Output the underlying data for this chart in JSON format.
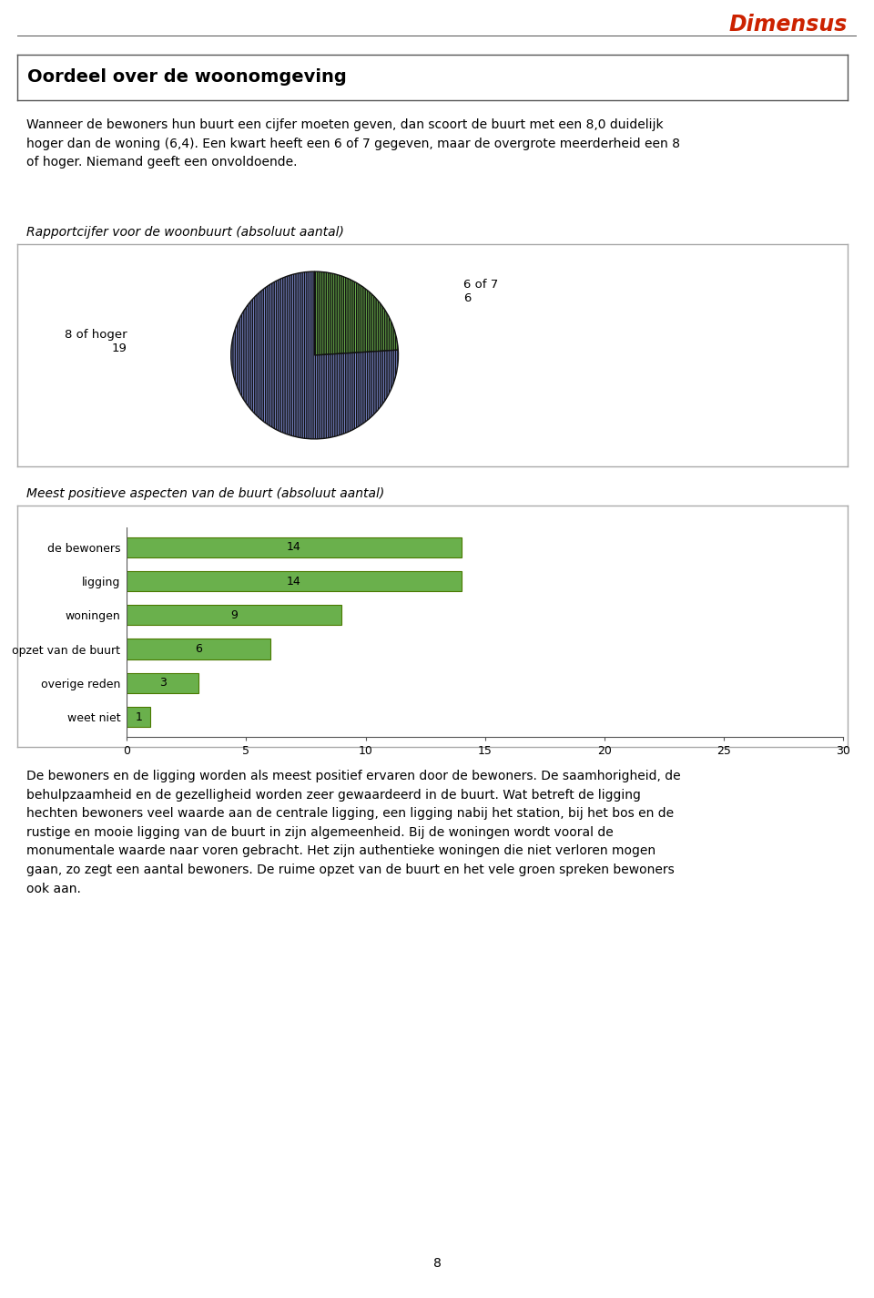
{
  "brand_name": "Dimensus",
  "brand_color": "#cc2200",
  "header_title": "Oordeel over de woonomgeving",
  "intro_text": "Wanneer de bewoners hun buurt een cijfer moeten geven, dan scoort de buurt met een 8,0 duidelijk\nhoger dan de woning (6,4). Een kwart heeft een 6 of 7 gegeven, maar de overgrote meerderheid een 8\nof hoger. Niemand geeft een onvoldoende.",
  "pie_title": "Rapportcijfer voor de woonbuurt (absoluut aantal)",
  "pie_values": [
    6,
    19
  ],
  "pie_colors": [
    "#6ab04c",
    "#7986cb"
  ],
  "pie_hatch_green": "|||||||",
  "pie_hatch_blue": "|||||||",
  "pie_label_green": "6 of 7\n6",
  "pie_label_blue": "8 of hoger\n19",
  "bar_title": "Meest positieve aspecten van de buurt (absoluut aantal)",
  "bar_categories": [
    "de bewoners",
    "ligging",
    "woningen",
    "opzet van de buurt",
    "overige reden",
    "weet niet"
  ],
  "bar_values": [
    14,
    14,
    9,
    6,
    3,
    1
  ],
  "bar_color": "#6ab04c",
  "bar_border_color": "#4a7a00",
  "bar_xlim": [
    0,
    30
  ],
  "bar_xticks": [
    0,
    5,
    10,
    15,
    20,
    25,
    30
  ],
  "footer_text": "De bewoners en de ligging worden als meest positief ervaren door de bewoners. De saamhorigheid, de\nbehulpzaamheid en de gezelligheid worden zeer gewaardeerd in de buurt. Wat betreft de ligging\nhechten bewoners veel waarde aan de centrale ligging, een ligging nabij het station, bij het bos en de\nrustige en mooie ligging van de buurt in zijn algemeenheid. Bij de woningen wordt vooral de\nmonumentale waarde naar voren gebracht. Het zijn authentieke woningen die niet verloren mogen\ngaan, zo zegt een aantal bewoners. De ruime opzet van de buurt en het vele groen spreken bewoners\nook aan.",
  "page_number": "8",
  "bg_color": "#ffffff",
  "box_edge_color": "#aaaaaa",
  "line_color": "#555555"
}
